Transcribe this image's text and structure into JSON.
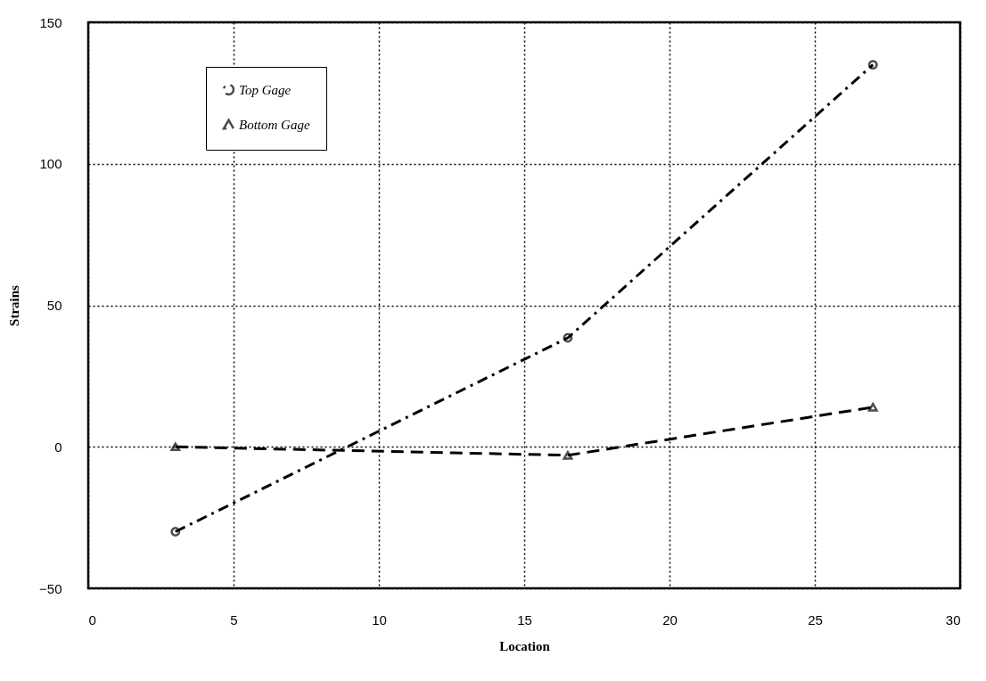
{
  "chart_data": {
    "type": "line",
    "xlabel": "Location",
    "ylabel": "Strains",
    "xlim": [
      0,
      30
    ],
    "xticks": [
      0,
      5,
      10,
      15,
      20,
      25,
      30
    ],
    "ylim": [
      -50,
      150
    ],
    "yticks": [
      -50,
      0,
      50,
      100,
      150
    ],
    "grid": true,
    "legend": "top left",
    "x": [
      3,
      16.5,
      27
    ],
    "series": [
      {
        "name": "Top Gage",
        "color": "#000000",
        "values": [
          -30,
          38.5,
          135
        ],
        "marker": "circle",
        "line_style": "dashdot"
      },
      {
        "name": "Bottom Gage",
        "color": "#000000",
        "values": [
          0,
          -3,
          14
        ],
        "marker": "triangle",
        "line_style": "dashed"
      }
    ]
  }
}
